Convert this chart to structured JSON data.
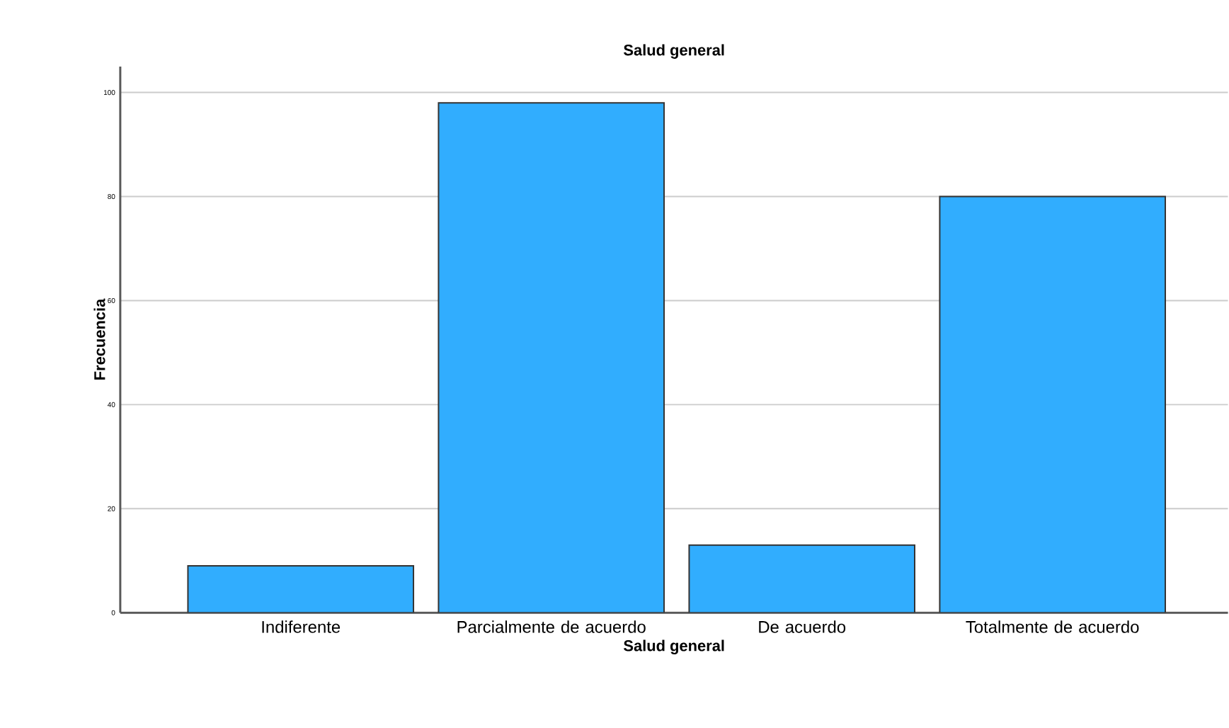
{
  "chart_data": {
    "type": "bar",
    "title": "Salud general",
    "xlabel": "Salud general",
    "ylabel": "Frecuencia",
    "categories": [
      "Indiferente",
      "Parcialmente de acuerdo",
      "De acuerdo",
      "Totalmente de acuerdo"
    ],
    "values": [
      9,
      98,
      13,
      80
    ],
    "color": "#31adfe",
    "ylim": [
      0,
      105
    ],
    "yticks": [
      0,
      20,
      40,
      60,
      80,
      100
    ],
    "grid": "y"
  }
}
